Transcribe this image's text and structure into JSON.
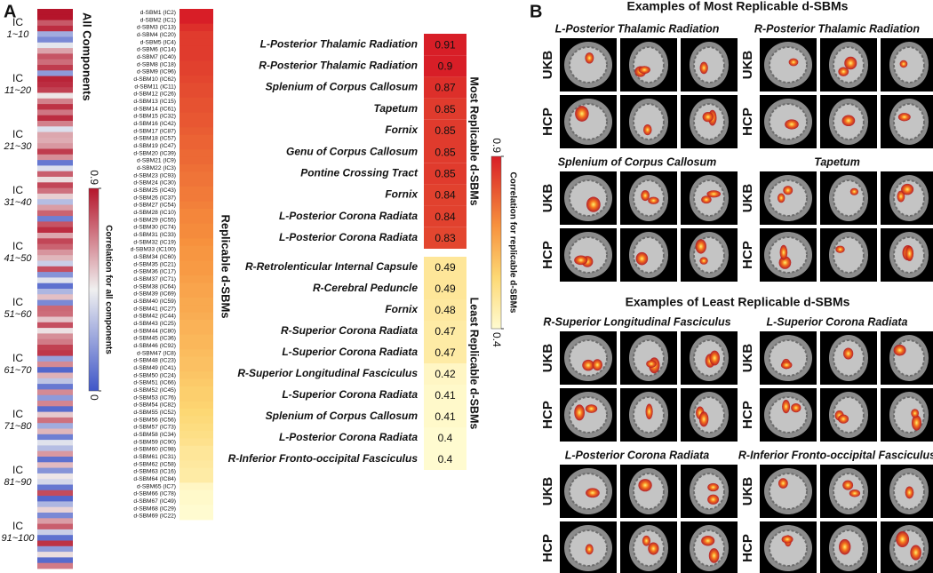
{
  "panel_a": {
    "label": "A",
    "all_components": {
      "title": "All Components",
      "group_labels": [
        {
          "prefix": "IC",
          "range": "1~10"
        },
        {
          "prefix": "IC",
          "range": "11~20"
        },
        {
          "prefix": "IC",
          "range": "21~30"
        },
        {
          "prefix": "IC",
          "range": "31~40"
        },
        {
          "prefix": "IC",
          "range": "41~50"
        },
        {
          "prefix": "IC",
          "range": "51~60"
        },
        {
          "prefix": "IC",
          "range": "61~70"
        },
        {
          "prefix": "IC",
          "range": "71~80"
        },
        {
          "prefix": "IC",
          "range": "81~90"
        },
        {
          "prefix": "IC",
          "range": "91~100"
        }
      ],
      "values": [
        0.9,
        0.91,
        0.76,
        0.85,
        0.25,
        0.15,
        0.42,
        0.61,
        0.77,
        0.72,
        0.82,
        0.2,
        0.87,
        0.85,
        0.81,
        0.47,
        0.68,
        0.84,
        0.7,
        0.85,
        0.68,
        0.4,
        0.6,
        0.59,
        0.63,
        0.82,
        0.65,
        0.1,
        0.4,
        0.75,
        0.49,
        0.8,
        0.71,
        0.52,
        0.3,
        0.62,
        0.74,
        0.12,
        0.77,
        0.85,
        0.6,
        0.8,
        0.74,
        0.64,
        0.57,
        0.35,
        0.78,
        0.18,
        0.41,
        0.08,
        0.28,
        0.55,
        0.15,
        0.73,
        0.72,
        0.54,
        0.78,
        0.48,
        0.65,
        0.69,
        0.81,
        0.83,
        0.22,
        0.66,
        0.05,
        0.58,
        0.32,
        0.1,
        0.66,
        0.2,
        0.67,
        0.06,
        0.53,
        0.71,
        0.25,
        0.57,
        0.12,
        0.41,
        0.3,
        0.63,
        0.08,
        0.56,
        0.18,
        0.47,
        0.38,
        0.1,
        0.79,
        0.05,
        0.28,
        0.51,
        0.15,
        0.62,
        0.75,
        0.35,
        0.08,
        0.84,
        0.2,
        0.49,
        0.06,
        0.69
      ],
      "colorbar": {
        "label": "Correlation for all components",
        "lim": [
          0,
          0.9
        ],
        "ticks": [
          0.9,
          0
        ]
      }
    },
    "replicable": {
      "title": "Replicable d-SBMs",
      "labels": [
        "d-SBM1 (IC2)",
        "d-SBM2 (IC1)",
        "d-SBM3 (IC13)",
        "d-SBM4 (IC20)",
        "d-SBM5 (IC4)",
        "d-SBM6 (IC14)",
        "d-SBM7 (IC40)",
        "d-SBM8 (IC18)",
        "d-SBM9 (IC96)",
        "d-SBM10 (IC62)",
        "d-SBM11 (IC11)",
        "d-SBM12 (IC26)",
        "d-SBM13 (IC15)",
        "d-SBM14 (IC61)",
        "d-SBM15 (IC32)",
        "d-SBM16 (IC42)",
        "d-SBM17 (IC87)",
        "d-SBM18 (IC57)",
        "d-SBM19 (IC47)",
        "d-SBM20 (IC39)",
        "d-SBM21 (IC9)",
        "d-SBM22 (IC3)",
        "d-SBM23 (IC93)",
        "d-SBM24 (IC30)",
        "d-SBM25 (IC43)",
        "d-SBM26 (IC37)",
        "d-SBM27 (IC54)",
        "d-SBM28 (IC10)",
        "d-SBM29 (IC55)",
        "d-SBM30 (IC74)",
        "d-SBM31 (IC33)",
        "d-SBM32 (IC19)",
        "d-SBM33 (IC100)",
        "d-SBM34 (IC60)",
        "d-SBM35 (IC21)",
        "d-SBM36 (IC17)",
        "d-SBM37 (IC71)",
        "d-SBM38 (IC64)",
        "d-SBM39 (IC69)",
        "d-SBM40 (IC59)",
        "d-SBM41 (IC27)",
        "d-SBM42 (IC44)",
        "d-SBM43 (IC25)",
        "d-SBM44 (IC80)",
        "d-SBM45 (IC36)",
        "d-SBM46 (IC92)",
        "d-SBM47 (IC8)",
        "d-SBM48 (IC23)",
        "d-SBM49 (IC41)",
        "d-SBM50 (IC24)",
        "d-SBM51 (IC66)",
        "d-SBM52 (IC45)",
        "d-SBM53 (IC76)",
        "d-SBM54 (IC82)",
        "d-SBM55 (IC52)",
        "d-SBM56 (IC56)",
        "d-SBM57 (IC73)",
        "d-SBM58 (IC34)",
        "d-SBM59 (IC90)",
        "d-SBM60 (IC98)",
        "d-SBM61 (IC31)",
        "d-SBM62 (IC58)",
        "d-SBM63 (IC16)",
        "d-SBM64 (IC84)",
        "d-SBM65 (IC7)",
        "d-SBM66 (IC78)",
        "d-SBM67 (IC49)",
        "d-SBM68 (IC29)",
        "d-SBM69 (IC22)"
      ],
      "values": [
        0.91,
        0.9,
        0.87,
        0.85,
        0.85,
        0.85,
        0.85,
        0.84,
        0.84,
        0.83,
        0.82,
        0.82,
        0.81,
        0.81,
        0.8,
        0.8,
        0.79,
        0.78,
        0.78,
        0.77,
        0.77,
        0.76,
        0.75,
        0.75,
        0.74,
        0.74,
        0.73,
        0.72,
        0.72,
        0.71,
        0.71,
        0.7,
        0.69,
        0.69,
        0.68,
        0.68,
        0.67,
        0.66,
        0.66,
        0.65,
        0.65,
        0.64,
        0.63,
        0.63,
        0.62,
        0.62,
        0.61,
        0.6,
        0.6,
        0.59,
        0.58,
        0.57,
        0.57,
        0.56,
        0.55,
        0.54,
        0.53,
        0.52,
        0.51,
        0.49,
        0.49,
        0.48,
        0.47,
        0.47,
        0.42,
        0.41,
        0.41,
        0.4,
        0.4
      ]
    },
    "most": {
      "title": "Most Replicable d-SBMs",
      "rows": [
        {
          "name": "L-Posterior Thalamic Radiation",
          "value": 0.91
        },
        {
          "name": "R-Posterior Thalamic Radiation",
          "value": 0.9
        },
        {
          "name": "Splenium of Corpus Callosum",
          "value": 0.87
        },
        {
          "name": "Tapetum",
          "value": 0.85
        },
        {
          "name": "Fornix",
          "value": 0.85
        },
        {
          "name": "Genu of Corpus Callosum",
          "value": 0.85
        },
        {
          "name": "Pontine Crossing Tract",
          "value": 0.85
        },
        {
          "name": "Fornix",
          "value": 0.84
        },
        {
          "name": "L-Posterior Corona Radiata",
          "value": 0.84
        },
        {
          "name": "L-Posterior Corona Radiata",
          "value": 0.83
        }
      ]
    },
    "least": {
      "title": "Least Replicable d-SBMs",
      "rows": [
        {
          "name": "R-Retrolenticular Internal Capsule",
          "value": 0.49
        },
        {
          "name": "R-Cerebral Peduncle",
          "value": 0.49
        },
        {
          "name": "Fornix",
          "value": 0.48
        },
        {
          "name": "R-Superior Corona Radiata",
          "value": 0.47
        },
        {
          "name": "L-Superior Corona Radiata",
          "value": 0.47
        },
        {
          "name": "R-Superior Longitudinal Fasciculus",
          "value": 0.42
        },
        {
          "name": "L-Superior Corona Radiata",
          "value": 0.41
        },
        {
          "name": "Splenium of Corpus Callosum",
          "value": 0.41
        },
        {
          "name": "L-Posterior Corona Radiata",
          "value": 0.4
        },
        {
          "name": "R-Inferior Fronto-occipital Fasciculus",
          "value": 0.4
        }
      ]
    },
    "colorbar": {
      "label": "Correlation for replicable d-SBMs",
      "lim": [
        0.4,
        0.9
      ],
      "ticks": [
        0.9,
        0.4
      ]
    }
  },
  "panel_b": {
    "label": "B",
    "most_title": "Examples of Most Replicable d-SBMs",
    "least_title": "Examples of Least Replicable d-SBMs",
    "examples": [
      {
        "title": "L-Posterior Thalamic Radiation",
        "rows": [
          "UKB",
          "HCP"
        ]
      },
      {
        "title": "R-Posterior Thalamic Radiation",
        "rows": [
          "UKB",
          "HCP"
        ]
      },
      {
        "title": "Splenium of Corpus Callosum",
        "rows": [
          "UKB",
          "HCP"
        ]
      },
      {
        "title": "Tapetum",
        "rows": [
          "UKB",
          "HCP"
        ]
      },
      {
        "title": "R-Superior Longitudinal Fasciculus",
        "rows": [
          "UKB",
          "HCP"
        ]
      },
      {
        "title": "L-Superior Corona Radiata",
        "rows": [
          "UKB",
          "HCP"
        ]
      },
      {
        "title": "L-Posterior Corona Radiata",
        "rows": [
          "UKB",
          "HCP"
        ]
      },
      {
        "title": "R-Inferior Fronto-occipital Fasciculus",
        "rows": [
          "UKB",
          "HCP"
        ]
      }
    ]
  }
}
